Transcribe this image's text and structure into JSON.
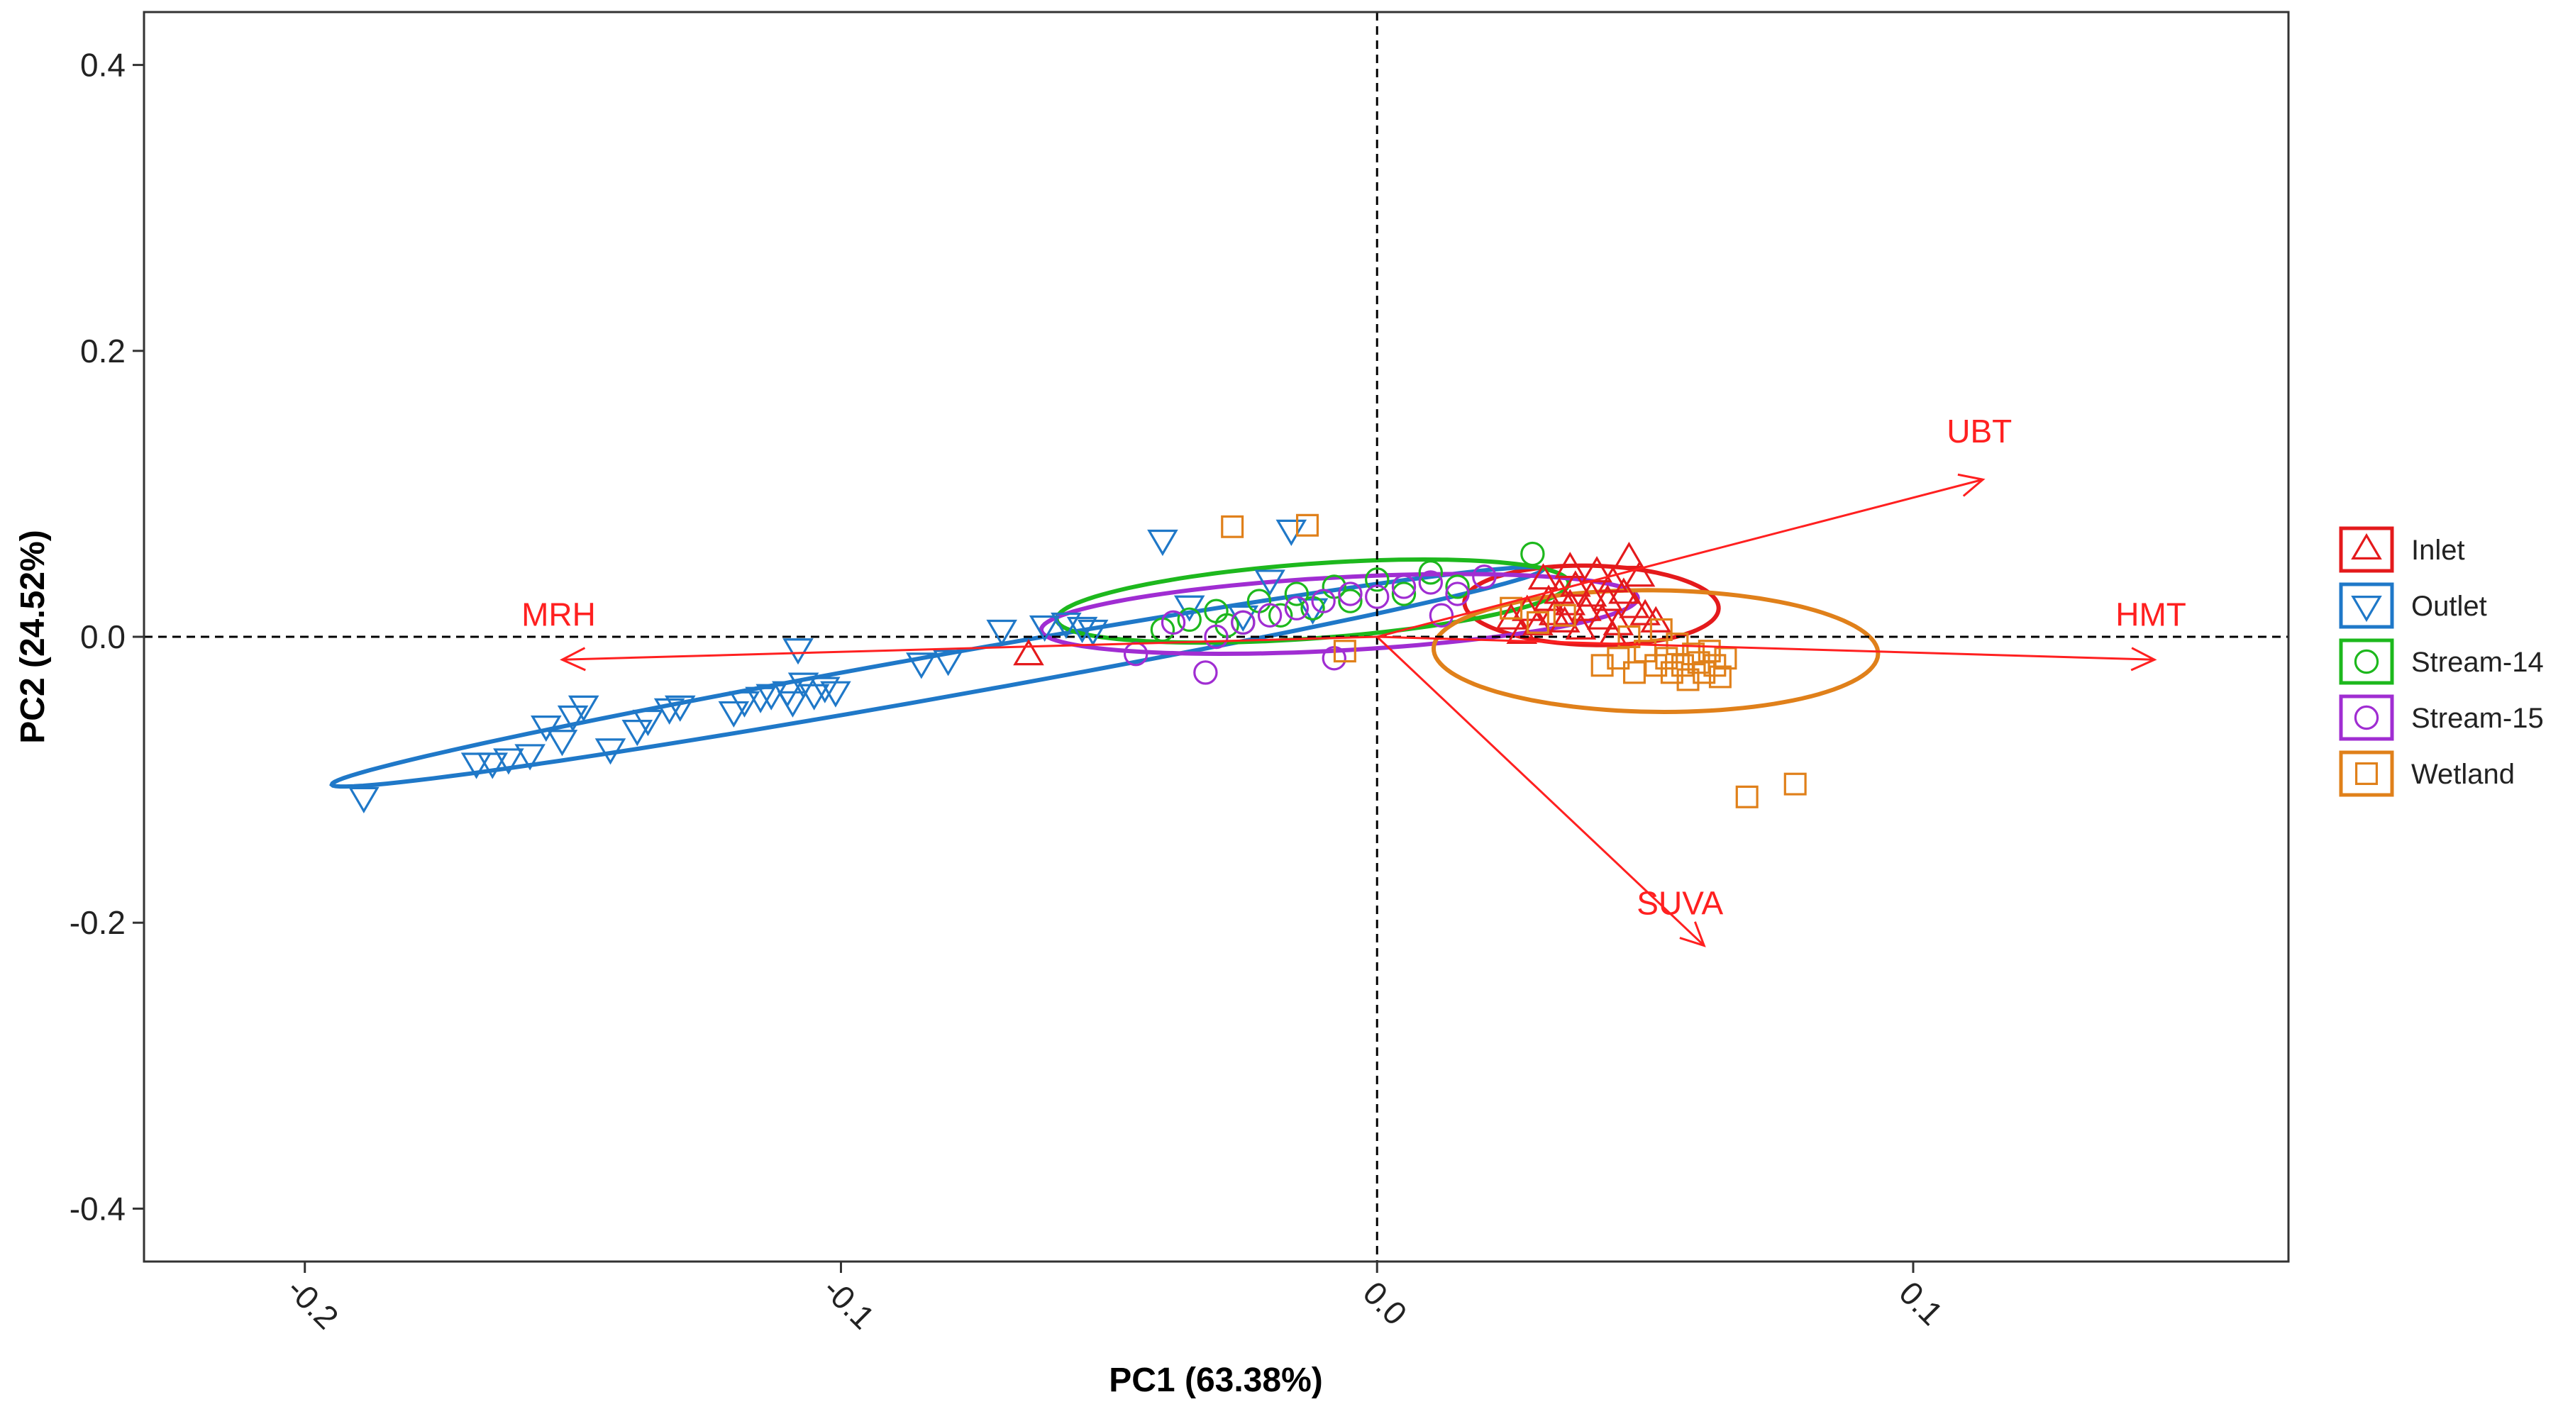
{
  "chart_data": {
    "type": "scatter",
    "subtype": "pca-biplot",
    "title": "",
    "xlabel": "PC1 (63.38%)",
    "ylabel": "PC2 (24.52%)",
    "xlim": [
      -0.23,
      0.17
    ],
    "ylim": [
      -0.437,
      0.437
    ],
    "xticks": [
      -0.2,
      -0.1,
      0.0,
      0.1
    ],
    "xtick_labels": [
      "-0.2",
      "-0.1",
      "0.0",
      "0.1"
    ],
    "yticks": [
      -0.4,
      -0.2,
      0.0,
      0.2,
      0.4
    ],
    "ytick_labels": [
      "-0.4",
      "-0.2",
      "0.0",
      "0.2",
      "0.4"
    ],
    "grid": false,
    "reference_lines": {
      "x": 0,
      "y": 0,
      "style": "dashed"
    },
    "legend_position": "right",
    "loadings": {
      "color": "#FF2020",
      "vectors": [
        {
          "name": "MRH",
          "x": -0.152,
          "y": -0.016
        },
        {
          "name": "UBT",
          "x": 0.113,
          "y": 0.11
        },
        {
          "name": "HMT",
          "x": 0.145,
          "y": -0.016
        },
        {
          "name": "SUVA",
          "x": 0.061,
          "y": -0.216
        }
      ]
    },
    "series": [
      {
        "name": "Inlet",
        "color": "#E41A1C",
        "marker": "triangle-up",
        "points": [
          [
            -0.065,
            -0.013
          ],
          [
            0.025,
            0.012
          ],
          [
            0.028,
            0.018
          ],
          [
            0.03,
            0.008
          ],
          [
            0.032,
            0.025
          ],
          [
            0.033,
            0.015
          ],
          [
            0.034,
            0.03
          ],
          [
            0.035,
            0.01
          ],
          [
            0.036,
            0.022
          ],
          [
            0.037,
            0.035
          ],
          [
            0.038,
            0.005
          ],
          [
            0.039,
            0.018
          ],
          [
            0.04,
            0.028
          ],
          [
            0.041,
            0.045
          ],
          [
            0.042,
            0.012
          ],
          [
            0.043,
            0.025
          ],
          [
            0.044,
            0.038
          ],
          [
            0.045,
            0.008
          ],
          [
            0.046,
            0.03
          ],
          [
            0.047,
            0.055
          ],
          [
            0.048,
            0.02
          ],
          [
            0.05,
            0.015
          ],
          [
            0.052,
            0.01
          ],
          [
            0.027,
            0.002
          ],
          [
            0.031,
            0.04
          ],
          [
            0.036,
            0.048
          ],
          [
            0.049,
            0.042
          ],
          [
            0.044,
            0.0
          ]
        ],
        "ellipse": {
          "cx": 0.04,
          "cy": 0.022,
          "rx": 0.0235,
          "ry": 0.028,
          "angle_deg": 12
        }
      },
      {
        "name": "Outlet",
        "color": "#1F78C8",
        "marker": "triangle-down",
        "points": [
          [
            -0.189,
            -0.112
          ],
          [
            -0.168,
            -0.088
          ],
          [
            -0.165,
            -0.088
          ],
          [
            -0.162,
            -0.085
          ],
          [
            -0.158,
            -0.082
          ],
          [
            -0.155,
            -0.062
          ],
          [
            -0.152,
            -0.072
          ],
          [
            -0.15,
            -0.055
          ],
          [
            -0.148,
            -0.048
          ],
          [
            -0.143,
            -0.078
          ],
          [
            -0.138,
            -0.065
          ],
          [
            -0.136,
            -0.058
          ],
          [
            -0.132,
            -0.05
          ],
          [
            -0.13,
            -0.048
          ],
          [
            -0.12,
            -0.052
          ],
          [
            -0.118,
            -0.045
          ],
          [
            -0.115,
            -0.042
          ],
          [
            -0.113,
            -0.04
          ],
          [
            -0.11,
            -0.038
          ],
          [
            -0.109,
            -0.045
          ],
          [
            -0.107,
            -0.032
          ],
          [
            -0.105,
            -0.04
          ],
          [
            -0.103,
            -0.035
          ],
          [
            -0.101,
            -0.038
          ],
          [
            -0.108,
            -0.008
          ],
          [
            -0.085,
            -0.018
          ],
          [
            -0.08,
            -0.016
          ],
          [
            -0.07,
            0.005
          ],
          [
            -0.062,
            0.008
          ],
          [
            -0.058,
            0.01
          ],
          [
            -0.055,
            0.007
          ],
          [
            -0.053,
            0.005
          ],
          [
            -0.04,
            0.068
          ],
          [
            -0.035,
            0.022
          ],
          [
            -0.02,
            0.04
          ],
          [
            -0.016,
            0.075
          ],
          [
            -0.012,
            0.02
          ],
          [
            -0.025,
            0.015
          ]
        ],
        "ellipse": {
          "cx": -0.082,
          "cy": -0.028,
          "rx": 0.136,
          "ry": 0.0125,
          "angle_deg": 34
        }
      },
      {
        "name": "Stream-14",
        "color": "#1DB81D",
        "marker": "circle",
        "points": [
          [
            -0.04,
            0.005
          ],
          [
            -0.035,
            0.012
          ],
          [
            -0.03,
            0.018
          ],
          [
            -0.025,
            0.01
          ],
          [
            -0.022,
            0.025
          ],
          [
            -0.018,
            0.015
          ],
          [
            -0.015,
            0.03
          ],
          [
            -0.012,
            0.02
          ],
          [
            -0.008,
            0.035
          ],
          [
            -0.005,
            0.025
          ],
          [
            0.0,
            0.04
          ],
          [
            0.005,
            0.03
          ],
          [
            0.01,
            0.045
          ],
          [
            0.015,
            0.035
          ],
          [
            0.029,
            0.058
          ],
          [
            -0.028,
            0.008
          ]
        ],
        "ellipse": {
          "cx": -0.012,
          "cy": 0.025,
          "rx": 0.05,
          "ry": 0.025,
          "angle_deg": 20
        }
      },
      {
        "name": "Stream-15",
        "color": "#A02DD2",
        "marker": "circle",
        "points": [
          [
            -0.045,
            -0.012
          ],
          [
            -0.032,
            -0.025
          ],
          [
            -0.03,
            0.0
          ],
          [
            -0.025,
            0.01
          ],
          [
            -0.02,
            0.015
          ],
          [
            -0.015,
            0.02
          ],
          [
            -0.01,
            0.025
          ],
          [
            -0.005,
            0.03
          ],
          [
            0.0,
            0.028
          ],
          [
            0.005,
            0.035
          ],
          [
            0.01,
            0.038
          ],
          [
            0.015,
            0.03
          ],
          [
            0.02,
            0.042
          ],
          [
            -0.008,
            -0.015
          ],
          [
            -0.038,
            0.01
          ],
          [
            0.012,
            0.015
          ]
        ],
        "ellipse": {
          "cx": -0.007,
          "cy": 0.016,
          "rx": 0.057,
          "ry": 0.025,
          "angle_deg": 14
        }
      },
      {
        "name": "Wetland",
        "color": "#E0801A",
        "marker": "square",
        "points": [
          [
            -0.027,
            0.077
          ],
          [
            -0.013,
            0.078
          ],
          [
            -0.006,
            -0.01
          ],
          [
            0.025,
            0.02
          ],
          [
            0.03,
            0.01
          ],
          [
            0.035,
            0.015
          ],
          [
            0.042,
            -0.02
          ],
          [
            0.045,
            -0.015
          ],
          [
            0.048,
            -0.025
          ],
          [
            0.05,
            -0.01
          ],
          [
            0.052,
            -0.02
          ],
          [
            0.054,
            -0.015
          ],
          [
            0.055,
            -0.025
          ],
          [
            0.056,
            -0.005
          ],
          [
            0.057,
            -0.02
          ],
          [
            0.058,
            -0.03
          ],
          [
            0.059,
            -0.012
          ],
          [
            0.06,
            -0.018
          ],
          [
            0.061,
            -0.025
          ],
          [
            0.062,
            -0.01
          ],
          [
            0.063,
            -0.02
          ],
          [
            0.064,
            -0.028
          ],
          [
            0.065,
            -0.015
          ],
          [
            0.047,
            0.0
          ],
          [
            0.053,
            0.005
          ],
          [
            0.069,
            -0.112
          ],
          [
            0.078,
            -0.103
          ]
        ],
        "ellipse": {
          "cx": 0.052,
          "cy": -0.01,
          "rx": 0.041,
          "ry": 0.043,
          "angle_deg": 28
        }
      }
    ]
  }
}
